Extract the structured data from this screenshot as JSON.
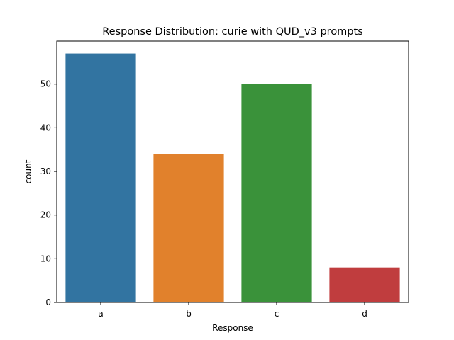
{
  "chart_data": {
    "type": "bar",
    "title": "Response Distribution: curie with QUD_v3 prompts",
    "xlabel": "Response",
    "ylabel": "count",
    "categories": [
      "a",
      "b",
      "c",
      "d"
    ],
    "values": [
      57,
      34,
      50,
      8
    ],
    "colors": [
      "#3274a1",
      "#e1812c",
      "#3a923a",
      "#c03d3e"
    ],
    "ylim": [
      0,
      59.85
    ],
    "yticks": [
      0,
      10,
      20,
      30,
      40,
      50
    ],
    "grid": false,
    "legend": "none"
  }
}
